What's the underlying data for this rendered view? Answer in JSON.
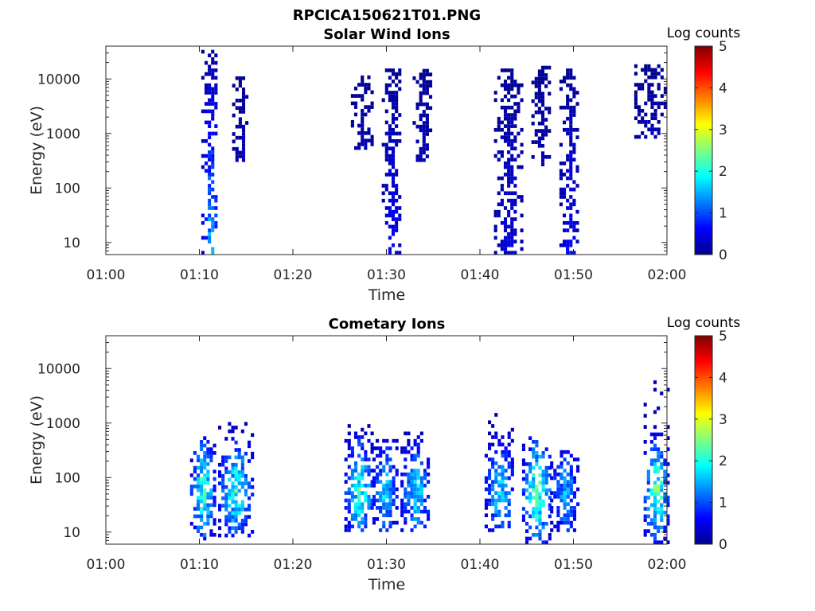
{
  "figure": {
    "title": "RPCICA150621T01.PNG"
  },
  "chart_data": [
    {
      "type": "heatmap",
      "title": "Solar Wind Ions",
      "xlabel": "Time",
      "ylabel": "Energy (eV)",
      "x_range": [
        "01:00",
        "02:00"
      ],
      "x_ticks": [
        "01:00",
        "01:10",
        "01:20",
        "01:30",
        "01:40",
        "01:50",
        "02:00"
      ],
      "y_scale": "log",
      "y_range": [
        6,
        40000
      ],
      "y_ticks": [
        "10",
        "100",
        "1000",
        "10000"
      ],
      "colorbar": {
        "title": "Log counts",
        "range": [
          0,
          5
        ],
        "ticks": [
          "0",
          "1",
          "2",
          "3",
          "4",
          "5"
        ],
        "colormap": "jet"
      },
      "bursts": [
        {
          "t_start": 10.2,
          "t_end": 11.9,
          "e_low": 6,
          "e_high": 30000,
          "peak_log_counts": 2.0
        },
        {
          "t_start": 13.5,
          "t_end": 15.2,
          "e_low": 300,
          "e_high": 10000,
          "peak_log_counts": 0.3
        },
        {
          "t_start": 26.2,
          "t_end": 28.5,
          "e_low": 500,
          "e_high": 10000,
          "peak_log_counts": 0.3
        },
        {
          "t_start": 29.5,
          "t_end": 31.5,
          "e_low": 6,
          "e_high": 15000,
          "peak_log_counts": 0.8
        },
        {
          "t_start": 32.8,
          "t_end": 34.8,
          "e_low": 300,
          "e_high": 15000,
          "peak_log_counts": 0.3
        },
        {
          "t_start": 41.5,
          "t_end": 44.5,
          "e_low": 6,
          "e_high": 15000,
          "peak_log_counts": 0.6
        },
        {
          "t_start": 45.5,
          "t_end": 47.5,
          "e_low": 250,
          "e_high": 15000,
          "peak_log_counts": 0.3
        },
        {
          "t_start": 48.5,
          "t_end": 50.5,
          "e_low": 6,
          "e_high": 15000,
          "peak_log_counts": 0.8
        },
        {
          "t_start": 56.5,
          "t_end": 60.0,
          "e_low": 800,
          "e_high": 17000,
          "peak_log_counts": 0.3
        }
      ]
    },
    {
      "type": "heatmap",
      "title": "Cometary Ions",
      "xlabel": "Time",
      "ylabel": "Energy (eV)",
      "x_range": [
        "01:00",
        "02:00"
      ],
      "x_ticks": [
        "01:00",
        "01:10",
        "01:20",
        "01:30",
        "01:40",
        "01:50",
        "02:00"
      ],
      "y_scale": "log",
      "y_range": [
        6,
        40000
      ],
      "y_ticks": [
        "10",
        "100",
        "1000",
        "10000"
      ],
      "colorbar": {
        "title": "Log counts",
        "range": [
          0,
          5
        ],
        "ticks": [
          "0",
          "1",
          "2",
          "3",
          "4",
          "5"
        ],
        "colormap": "jet"
      },
      "bursts": [
        {
          "t_start": 9.0,
          "t_end": 11.5,
          "e_low": 6,
          "e_high": 500,
          "peak_log_counts": 3.0
        },
        {
          "t_start": 12.0,
          "t_end": 15.5,
          "e_low": 8,
          "e_high": 1000,
          "peak_log_counts": 2.8
        },
        {
          "t_start": 25.5,
          "t_end": 28.5,
          "e_low": 10,
          "e_high": 1000,
          "peak_log_counts": 2.8
        },
        {
          "t_start": 28.5,
          "t_end": 31.0,
          "e_low": 10,
          "e_high": 500,
          "peak_log_counts": 2.3
        },
        {
          "t_start": 31.5,
          "t_end": 34.5,
          "e_low": 10,
          "e_high": 800,
          "peak_log_counts": 2.4
        },
        {
          "t_start": 40.5,
          "t_end": 43.5,
          "e_low": 10,
          "e_high": 1500,
          "peak_log_counts": 2.4
        },
        {
          "t_start": 44.5,
          "t_end": 47.5,
          "e_low": 6,
          "e_high": 500,
          "peak_log_counts": 3.2
        },
        {
          "t_start": 47.5,
          "t_end": 50.5,
          "e_low": 10,
          "e_high": 300,
          "peak_log_counts": 2.0
        },
        {
          "t_start": 57.5,
          "t_end": 60.0,
          "e_low": 6,
          "e_high": 6000,
          "peak_log_counts": 3.3
        }
      ]
    }
  ]
}
